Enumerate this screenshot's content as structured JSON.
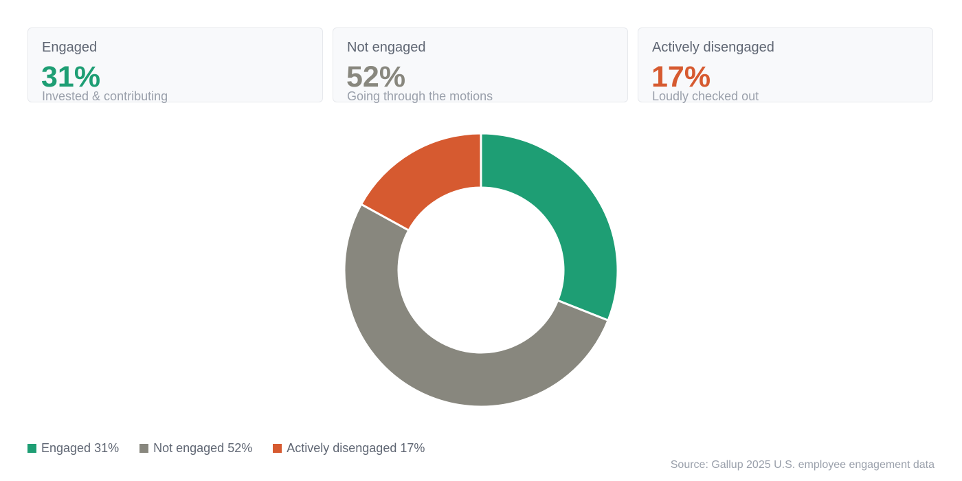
{
  "cards": [
    {
      "title": "Engaged",
      "value": "31%",
      "subtitle": "Invested & contributing",
      "color": "#1e9e74"
    },
    {
      "title": "Not engaged",
      "value": "52%",
      "subtitle": "Going through the motions",
      "color": "#88877e"
    },
    {
      "title": "Actively disengaged",
      "value": "17%",
      "subtitle": "Loudly checked out",
      "color": "#d65a30"
    }
  ],
  "chart_data": {
    "type": "pie",
    "variant": "donut",
    "categories": [
      "Engaged",
      "Not engaged",
      "Actively disengaged"
    ],
    "values": [
      31,
      52,
      17
    ],
    "colors": [
      "#1e9e74",
      "#88877e",
      "#d65a30"
    ],
    "legend_position": "bottom-left",
    "legend": [
      "Engaged 31%",
      "Not engaged 52%",
      "Actively disengaged 17%"
    ]
  },
  "source": "Source: Gallup 2025 U.S. employee engagement data"
}
